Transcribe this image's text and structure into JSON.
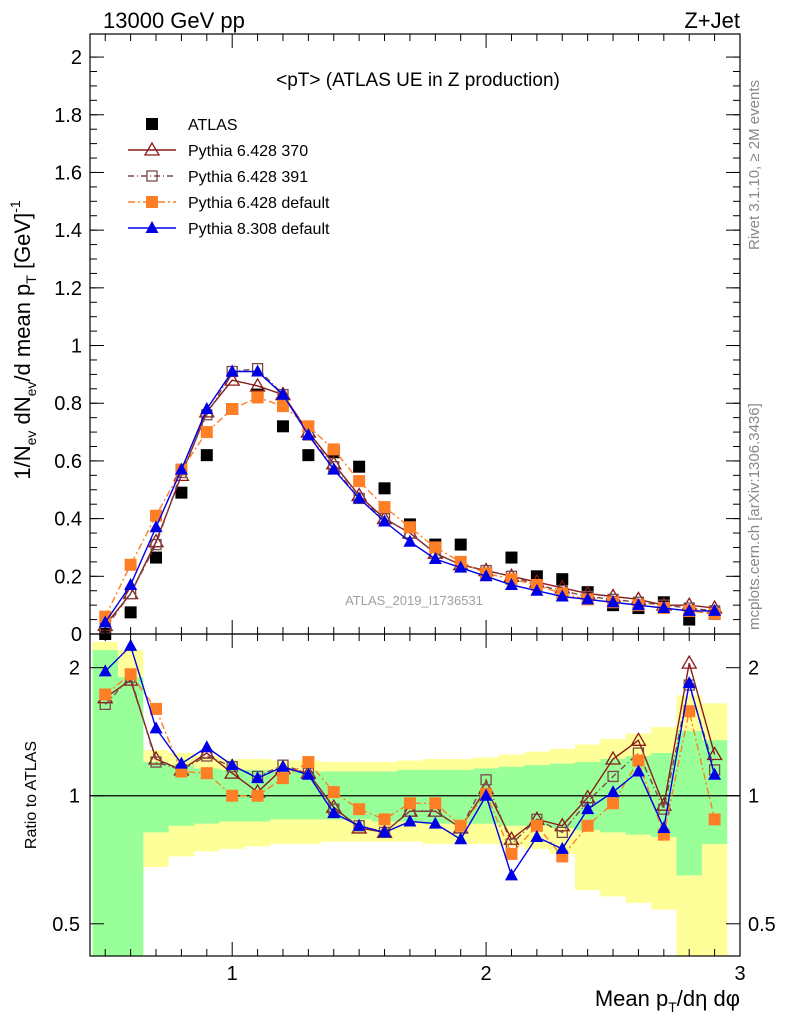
{
  "header": {
    "left": "13000 GeV pp",
    "right": "Z+Jet"
  },
  "side_text": {
    "rivet": "Rivet 3.1.10, ≥ 2M events",
    "mcplots": "mcplots.cern.ch [arXiv:1306.3436]"
  },
  "chart_data": [
    {
      "type": "scatter",
      "panel": "main",
      "title": "<pT> (ATLAS UE in Z production)",
      "analysis_tag": "ATLAS_2019_I1736531",
      "ylabel": "1/N_ev dN_ev/d mean p_T [GeV]^-1",
      "xlim": [
        0.44,
        3.0
      ],
      "ylim": [
        0,
        2.08
      ],
      "yticks": [
        "0",
        "0.2",
        "0.4",
        "0.6",
        "0.8",
        "1",
        "1.2",
        "1.4",
        "1.6",
        "1.8",
        "2"
      ],
      "legend_position": "top-left",
      "series": [
        {
          "name": "ATLAS",
          "color": "#000000",
          "marker": "square-filled",
          "x": [
            0.5,
            0.6,
            0.7,
            0.8,
            0.9,
            1.0,
            1.1,
            1.2,
            1.3,
            1.4,
            1.5,
            1.6,
            1.7,
            1.8,
            1.9,
            2.0,
            2.1,
            2.2,
            2.3,
            2.4,
            2.5,
            2.6,
            2.7,
            2.8,
            2.9
          ],
          "y": [
            0.0,
            0.075,
            0.265,
            0.49,
            0.62,
            0.78,
            0.83,
            0.72,
            0.62,
            0.63,
            0.58,
            0.505,
            0.38,
            0.31,
            0.31,
            0.21,
            0.265,
            0.2,
            0.19,
            0.145,
            0.1,
            0.09,
            0.11,
            0.05,
            0.07
          ]
        },
        {
          "name": "Pythia 6.428 370",
          "color": "#8b1a1a",
          "marker": "triangle-open",
          "x": [
            0.5,
            0.6,
            0.7,
            0.8,
            0.9,
            1.0,
            1.1,
            1.2,
            1.3,
            1.4,
            1.5,
            1.6,
            1.7,
            1.8,
            1.9,
            2.0,
            2.1,
            2.2,
            2.3,
            2.4,
            2.5,
            2.6,
            2.7,
            2.8,
            2.9
          ],
          "y": [
            0.03,
            0.14,
            0.32,
            0.55,
            0.77,
            0.88,
            0.86,
            0.83,
            0.7,
            0.59,
            0.48,
            0.4,
            0.35,
            0.28,
            0.24,
            0.22,
            0.2,
            0.18,
            0.16,
            0.14,
            0.13,
            0.12,
            0.1,
            0.1,
            0.09
          ]
        },
        {
          "name": "Pythia 6.428 391",
          "color": "#7a4a4a",
          "marker": "square-open",
          "x": [
            0.5,
            0.6,
            0.7,
            0.8,
            0.9,
            1.0,
            1.1,
            1.2,
            1.3,
            1.4,
            1.5,
            1.6,
            1.7,
            1.8,
            1.9,
            2.0,
            2.1,
            2.2,
            2.3,
            2.4,
            2.5,
            2.6,
            2.7,
            2.8,
            2.9
          ],
          "y": [
            0.02,
            0.14,
            0.31,
            0.56,
            0.76,
            0.91,
            0.92,
            0.83,
            0.69,
            0.58,
            0.47,
            0.4,
            0.35,
            0.28,
            0.24,
            0.22,
            0.2,
            0.17,
            0.15,
            0.13,
            0.12,
            0.11,
            0.1,
            0.09,
            0.08
          ]
        },
        {
          "name": "Pythia 6.428 default",
          "color": "#ff7f27",
          "marker": "square-filled",
          "x": [
            0.5,
            0.6,
            0.7,
            0.8,
            0.9,
            1.0,
            1.1,
            1.2,
            1.3,
            1.4,
            1.5,
            1.6,
            1.7,
            1.8,
            1.9,
            2.0,
            2.1,
            2.2,
            2.3,
            2.4,
            2.5,
            2.6,
            2.7,
            2.8,
            2.9
          ],
          "y": [
            0.06,
            0.24,
            0.41,
            0.57,
            0.7,
            0.78,
            0.82,
            0.79,
            0.72,
            0.64,
            0.53,
            0.44,
            0.37,
            0.3,
            0.25,
            0.21,
            0.19,
            0.17,
            0.14,
            0.12,
            0.11,
            0.1,
            0.09,
            0.08,
            0.07
          ]
        },
        {
          "name": "Pythia 8.308 default",
          "color": "#0000e6",
          "marker": "triangle-filled",
          "x": [
            0.5,
            0.6,
            0.7,
            0.8,
            0.9,
            1.0,
            1.1,
            1.2,
            1.3,
            1.4,
            1.5,
            1.6,
            1.7,
            1.8,
            1.9,
            2.0,
            2.1,
            2.2,
            2.3,
            2.4,
            2.5,
            2.6,
            2.7,
            2.8,
            2.9
          ],
          "y": [
            0.04,
            0.17,
            0.37,
            0.57,
            0.78,
            0.91,
            0.91,
            0.83,
            0.69,
            0.57,
            0.47,
            0.39,
            0.32,
            0.26,
            0.23,
            0.2,
            0.17,
            0.15,
            0.13,
            0.12,
            0.11,
            0.1,
            0.09,
            0.08,
            0.08
          ]
        }
      ]
    },
    {
      "type": "scatter",
      "panel": "ratio",
      "ylabel": "Ratio to ATLAS",
      "xlabel": "Mean p_T/dη dφ",
      "xlim": [
        0.44,
        3.0
      ],
      "ylim": [
        0.42,
        2.4
      ],
      "yscale": "log",
      "xticks": [
        "1",
        "2",
        "3"
      ],
      "yticks": [
        "0.5",
        "1",
        "2"
      ],
      "reference_line": 1,
      "bands": {
        "x_edges": [
          0.45,
          0.55,
          0.65,
          0.75,
          0.85,
          0.95,
          1.05,
          1.15,
          1.25,
          1.35,
          1.45,
          1.55,
          1.65,
          1.75,
          1.85,
          1.95,
          2.05,
          2.15,
          2.25,
          2.35,
          2.45,
          2.55,
          2.65,
          2.75,
          2.85,
          2.95
        ],
        "green_low": [
          0.1,
          0.4,
          0.82,
          0.85,
          0.86,
          0.87,
          0.87,
          0.88,
          0.88,
          0.88,
          0.88,
          0.87,
          0.87,
          0.86,
          0.86,
          0.86,
          0.85,
          0.85,
          0.84,
          0.83,
          0.82,
          0.81,
          0.8,
          0.65,
          0.77
        ],
        "green_high": [
          2.2,
          1.9,
          1.2,
          1.18,
          1.16,
          1.15,
          1.15,
          1.14,
          1.14,
          1.14,
          1.14,
          1.14,
          1.15,
          1.15,
          1.15,
          1.16,
          1.17,
          1.18,
          1.19,
          1.2,
          1.22,
          1.24,
          1.26,
          1.42,
          1.35
        ],
        "yellow_low": [
          0.1,
          0.2,
          0.68,
          0.72,
          0.74,
          0.75,
          0.76,
          0.77,
          0.77,
          0.78,
          0.78,
          0.78,
          0.78,
          0.77,
          0.77,
          0.77,
          0.76,
          0.75,
          0.73,
          0.6,
          0.58,
          0.56,
          0.54,
          0.38,
          0.4
        ],
        "yellow_high": [
          2.3,
          2.2,
          1.28,
          1.26,
          1.24,
          1.22,
          1.22,
          1.21,
          1.21,
          1.2,
          1.2,
          1.2,
          1.21,
          1.22,
          1.22,
          1.23,
          1.25,
          1.27,
          1.29,
          1.32,
          1.36,
          1.4,
          1.45,
          1.72,
          1.65
        ]
      },
      "series": [
        {
          "name": "Pythia 6.428 370",
          "color": "#8b1a1a",
          "marker": "triangle-open",
          "x": [
            0.5,
            0.6,
            0.7,
            0.8,
            0.9,
            1.0,
            1.1,
            1.2,
            1.3,
            1.4,
            1.5,
            1.6,
            1.7,
            1.8,
            1.9,
            2.0,
            2.1,
            2.2,
            2.3,
            2.4,
            2.5,
            2.6,
            2.7,
            2.8,
            2.9
          ],
          "y": [
            1.7,
            1.87,
            1.22,
            1.15,
            1.26,
            1.13,
            1.02,
            1.16,
            1.13,
            0.94,
            0.84,
            0.82,
            0.92,
            0.92,
            0.84,
            1.04,
            0.79,
            0.88,
            0.85,
            0.99,
            1.22,
            1.35,
            0.95,
            2.05,
            1.25
          ]
        },
        {
          "name": "Pythia 6.428 391",
          "color": "#7a4a4a",
          "marker": "square-open",
          "x": [
            0.5,
            0.6,
            0.7,
            0.8,
            0.9,
            1.0,
            1.1,
            1.2,
            1.3,
            1.4,
            1.5,
            1.6,
            1.7,
            1.8,
            1.9,
            2.0,
            2.1,
            2.2,
            2.3,
            2.4,
            2.5,
            2.6,
            2.7,
            2.8,
            2.9
          ],
          "y": [
            1.64,
            1.9,
            1.2,
            1.15,
            1.24,
            1.17,
            1.11,
            1.18,
            1.13,
            0.93,
            0.85,
            0.82,
            0.92,
            0.92,
            0.84,
            1.09,
            0.77,
            0.88,
            0.82,
            0.97,
            1.11,
            1.26,
            0.93,
            1.82,
            1.15
          ]
        },
        {
          "name": "Pythia 6.428 default",
          "color": "#ff7f27",
          "marker": "square-filled",
          "x": [
            0.5,
            0.6,
            0.7,
            0.8,
            0.9,
            1.0,
            1.1,
            1.2,
            1.3,
            1.4,
            1.5,
            1.6,
            1.7,
            1.8,
            1.9,
            2.0,
            2.1,
            2.2,
            2.3,
            2.4,
            2.5,
            2.6,
            2.7,
            2.8,
            2.9
          ],
          "y": [
            1.73,
            1.93,
            1.6,
            1.14,
            1.13,
            1.0,
            1.0,
            1.1,
            1.2,
            1.02,
            0.93,
            0.88,
            0.96,
            0.96,
            0.85,
            1.01,
            0.73,
            0.85,
            0.72,
            0.85,
            0.96,
            1.21,
            0.81,
            1.58,
            0.88
          ]
        },
        {
          "name": "Pythia 8.308 default",
          "color": "#0000e6",
          "marker": "triangle-filled",
          "x": [
            0.5,
            0.6,
            0.7,
            0.8,
            0.9,
            1.0,
            1.1,
            1.2,
            1.3,
            1.4,
            1.5,
            1.6,
            1.7,
            1.8,
            1.9,
            2.0,
            2.1,
            2.2,
            2.3,
            2.4,
            2.5,
            2.6,
            2.7,
            2.8,
            2.9
          ],
          "y": [
            1.96,
            2.25,
            1.44,
            1.19,
            1.3,
            1.18,
            1.1,
            1.17,
            1.12,
            0.91,
            0.85,
            0.82,
            0.87,
            0.86,
            0.79,
            1.0,
            0.65,
            0.8,
            0.75,
            0.93,
            1.02,
            1.14,
            0.84,
            1.84,
            1.12
          ]
        }
      ]
    }
  ]
}
